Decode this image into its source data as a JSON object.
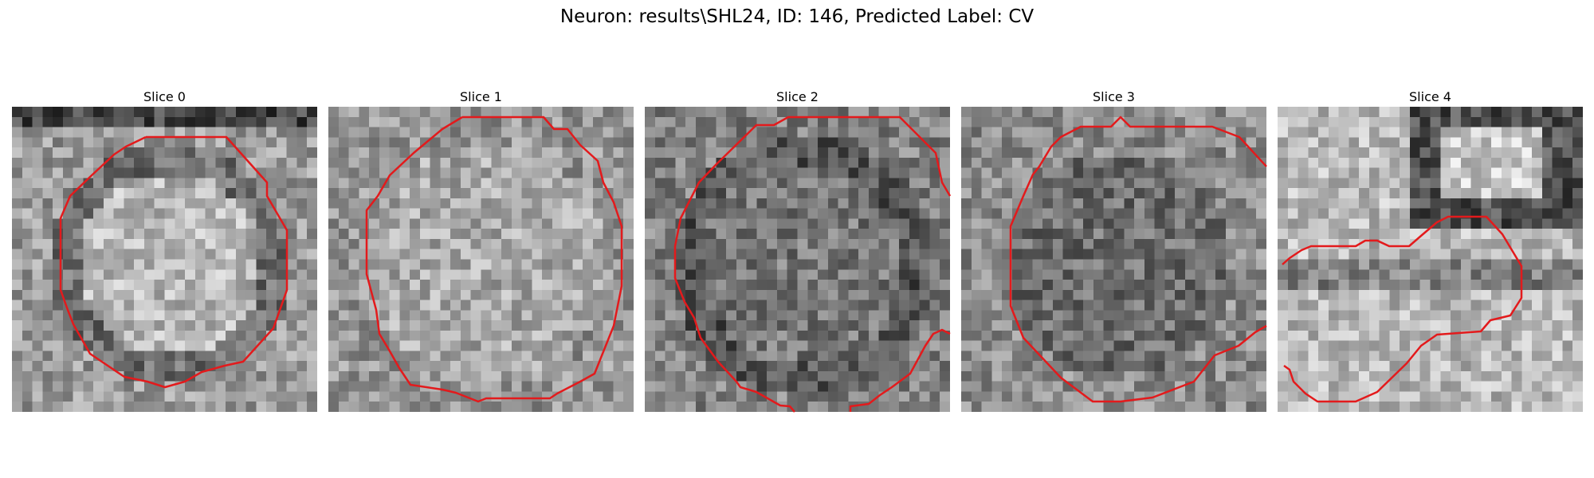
{
  "figure": {
    "title": "Neuron: results\\SHL24, ID: 146, Predicted Label: CV"
  },
  "contour_color": "#e31a1c",
  "slices": [
    {
      "label": "Slice 0"
    },
    {
      "label": "Slice 1"
    },
    {
      "label": "Slice 2"
    },
    {
      "label": "Slice 3"
    },
    {
      "label": "Slice 4"
    }
  ]
}
